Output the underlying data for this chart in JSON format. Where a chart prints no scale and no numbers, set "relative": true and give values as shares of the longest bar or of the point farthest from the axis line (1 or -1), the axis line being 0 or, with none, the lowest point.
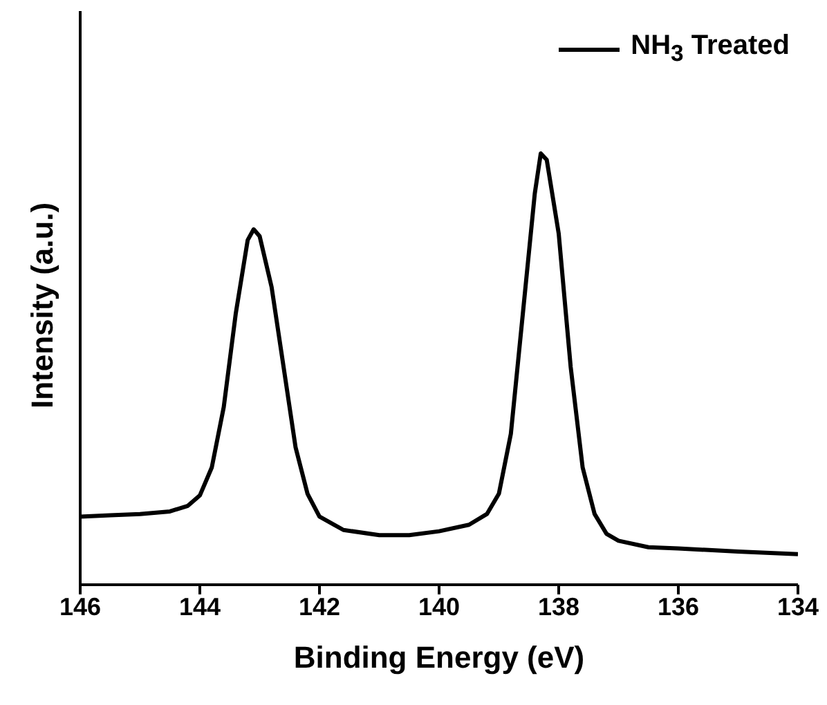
{
  "chart_data": {
    "type": "line",
    "xlabel": "Binding Energy (eV)",
    "ylabel": "Intensity (a.u.)",
    "relative": true,
    "legend": "top right",
    "marker": "none",
    "line_style": "solid",
    "xlim": [
      146,
      134
    ],
    "xticks": [
      146,
      144,
      142,
      140,
      138,
      136,
      134
    ],
    "series": [
      {
        "name": "NH$_{3}$ Treated",
        "color": "#000000",
        "x": [
          146,
          145.5,
          145,
          144.5,
          144.2,
          144,
          143.8,
          143.6,
          143.4,
          143.2,
          143.1,
          143,
          142.8,
          142.6,
          142.4,
          142.2,
          142,
          141.6,
          141,
          140.5,
          140,
          139.5,
          139.2,
          139,
          138.8,
          138.6,
          138.4,
          138.3,
          138.2,
          138,
          137.8,
          137.6,
          137.4,
          137.2,
          137,
          136.5,
          136,
          135,
          134
        ],
        "values": [
          0.158,
          0.161,
          0.164,
          0.17,
          0.183,
          0.207,
          0.272,
          0.412,
          0.628,
          0.799,
          0.824,
          0.808,
          0.69,
          0.505,
          0.319,
          0.211,
          0.158,
          0.127,
          0.115,
          0.115,
          0.124,
          0.139,
          0.164,
          0.211,
          0.35,
          0.628,
          0.907,
          1,
          0.985,
          0.814,
          0.505,
          0.272,
          0.164,
          0.118,
          0.102,
          0.087,
          0.084,
          0.077,
          0.071
        ]
      }
    ]
  }
}
